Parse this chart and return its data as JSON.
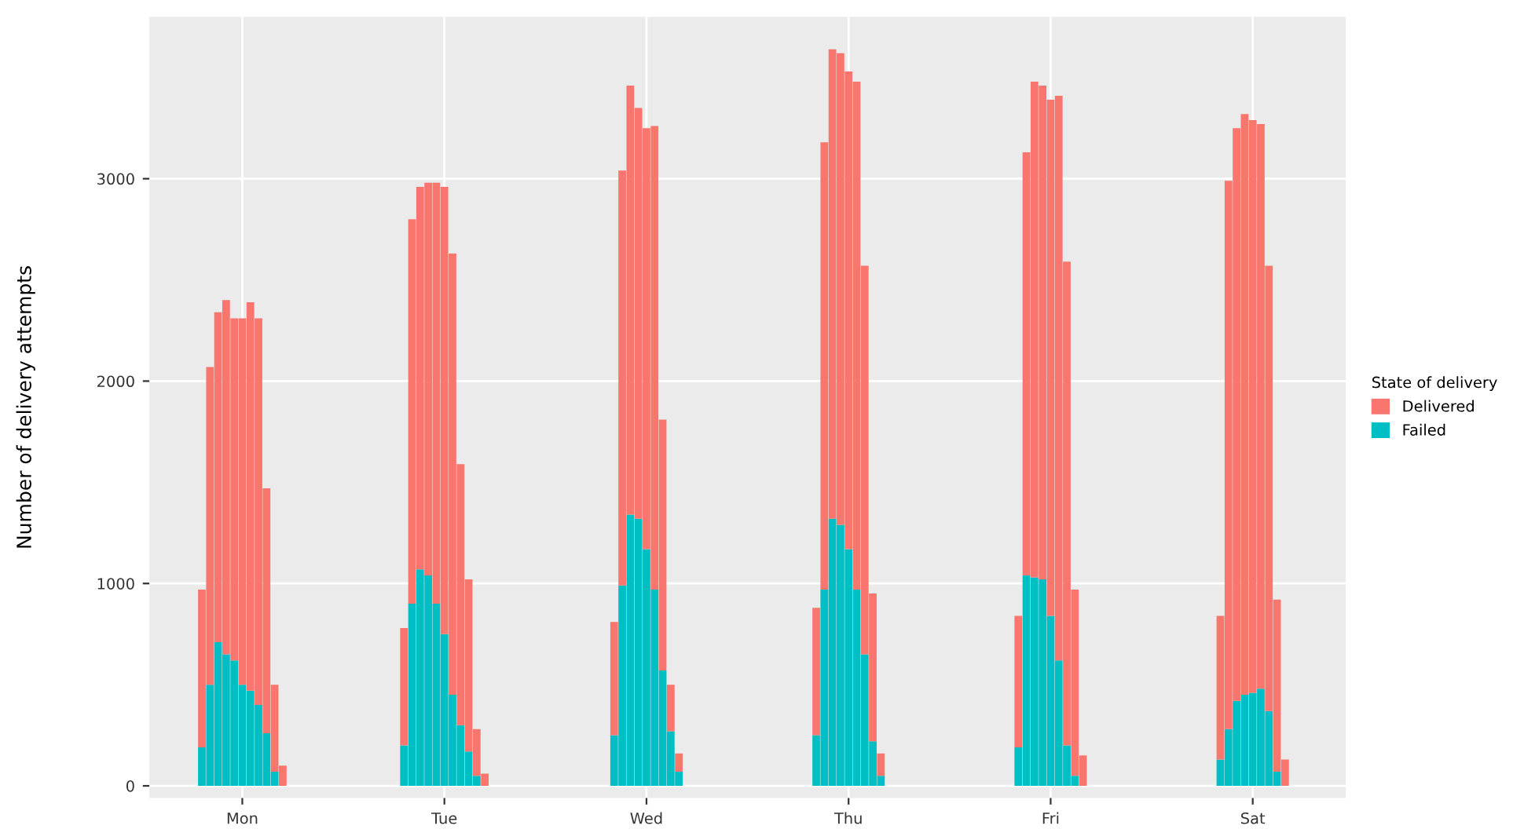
{
  "chart_data": {
    "type": "bar",
    "stacked": true,
    "ylabel": "Number of delivery attempts",
    "legend_title": "State of delivery",
    "legend": "right",
    "grid": true,
    "categories": [
      null,
      null,
      null,
      null,
      null,
      "Mon",
      null,
      null,
      null,
      null,
      null,
      null,
      null,
      null,
      null,
      null,
      null,
      null,
      null,
      null,
      null,
      null,
      null,
      null,
      null,
      null,
      null,
      null,
      null,
      null,
      "Tue",
      null,
      null,
      null,
      null,
      null,
      null,
      null,
      null,
      null,
      null,
      null,
      null,
      null,
      null,
      null,
      null,
      null,
      null,
      null,
      null,
      null,
      null,
      null,
      null,
      "Wed",
      null,
      null,
      null,
      null,
      null,
      null,
      null,
      null,
      null,
      null,
      null,
      null,
      null,
      null,
      null,
      null,
      null,
      null,
      null,
      null,
      null,
      null,
      null,
      null,
      "Thu",
      null,
      null,
      null,
      null,
      null,
      null,
      null,
      null,
      null,
      null,
      null,
      null,
      null,
      null,
      null,
      null,
      null,
      null,
      null,
      null,
      null,
      null,
      null,
      null,
      "Fri",
      null,
      null,
      null,
      null,
      null,
      null,
      null,
      null,
      null,
      null,
      null,
      null,
      null,
      null,
      null,
      null,
      null,
      null,
      null,
      null,
      null,
      null,
      null,
      null,
      "Sat",
      null,
      null,
      null,
      null,
      null
    ],
    "series": [
      {
        "name": "Failed",
        "color": "#00bfc4",
        "values": [
          190,
          500,
          710,
          650,
          620,
          500,
          470,
          400,
          260,
          70,
          0,
          null,
          null,
          null,
          null,
          null,
          null,
          null,
          null,
          null,
          null,
          null,
          null,
          null,
          null,
          200,
          900,
          1070,
          1040,
          900,
          750,
          450,
          300,
          170,
          50,
          0,
          null,
          null,
          null,
          null,
          null,
          null,
          null,
          null,
          null,
          null,
          null,
          null,
          null,
          null,
          null,
          250,
          990,
          1340,
          1320,
          1170,
          970,
          570,
          270,
          70,
          null,
          null,
          null,
          null,
          null,
          null,
          null,
          null,
          null,
          null,
          null,
          null,
          null,
          null,
          null,
          null,
          250,
          970,
          1320,
          1290,
          1170,
          970,
          650,
          220,
          50,
          null,
          null,
          null,
          null,
          null,
          null,
          null,
          null,
          null,
          null,
          null,
          null,
          null,
          null,
          null,
          null,
          190,
          1040,
          1030,
          1020,
          840,
          620,
          200,
          50,
          0,
          null,
          null,
          null,
          null,
          null,
          null,
          null,
          null,
          null,
          null,
          null,
          null,
          null,
          null,
          null,
          null,
          130,
          280,
          420,
          450,
          460,
          480,
          370,
          70,
          0,
          null
        ]
      },
      {
        "name": "Delivered",
        "color": "#f8766d",
        "values": [
          780,
          1570,
          1630,
          1750,
          1690,
          1810,
          1920,
          1910,
          1210,
          430,
          100,
          null,
          null,
          null,
          null,
          null,
          null,
          null,
          null,
          null,
          null,
          null,
          null,
          null,
          null,
          580,
          1900,
          1890,
          1940,
          2080,
          2210,
          2180,
          1290,
          850,
          230,
          60,
          null,
          null,
          null,
          null,
          null,
          null,
          null,
          null,
          null,
          null,
          null,
          null,
          null,
          null,
          null,
          560,
          2050,
          2120,
          2030,
          2080,
          2290,
          1240,
          230,
          90,
          null,
          null,
          null,
          null,
          null,
          null,
          null,
          null,
          null,
          null,
          null,
          null,
          null,
          null,
          null,
          null,
          630,
          2210,
          2320,
          2330,
          2360,
          2510,
          1920,
          730,
          110,
          null,
          null,
          null,
          null,
          null,
          null,
          null,
          null,
          null,
          null,
          null,
          null,
          null,
          null,
          null,
          null,
          650,
          2090,
          2450,
          2440,
          2550,
          2790,
          2390,
          920,
          150,
          null,
          null,
          null,
          null,
          null,
          null,
          null,
          null,
          null,
          null,
          null,
          null,
          null,
          null,
          null,
          null,
          710,
          2710,
          2830,
          2870,
          2830,
          2790,
          2200,
          850,
          130,
          null
        ]
      }
    ],
    "ylim": [
      -60,
      3800
    ],
    "yticks": [
      0,
      1000,
      2000,
      3000
    ]
  }
}
